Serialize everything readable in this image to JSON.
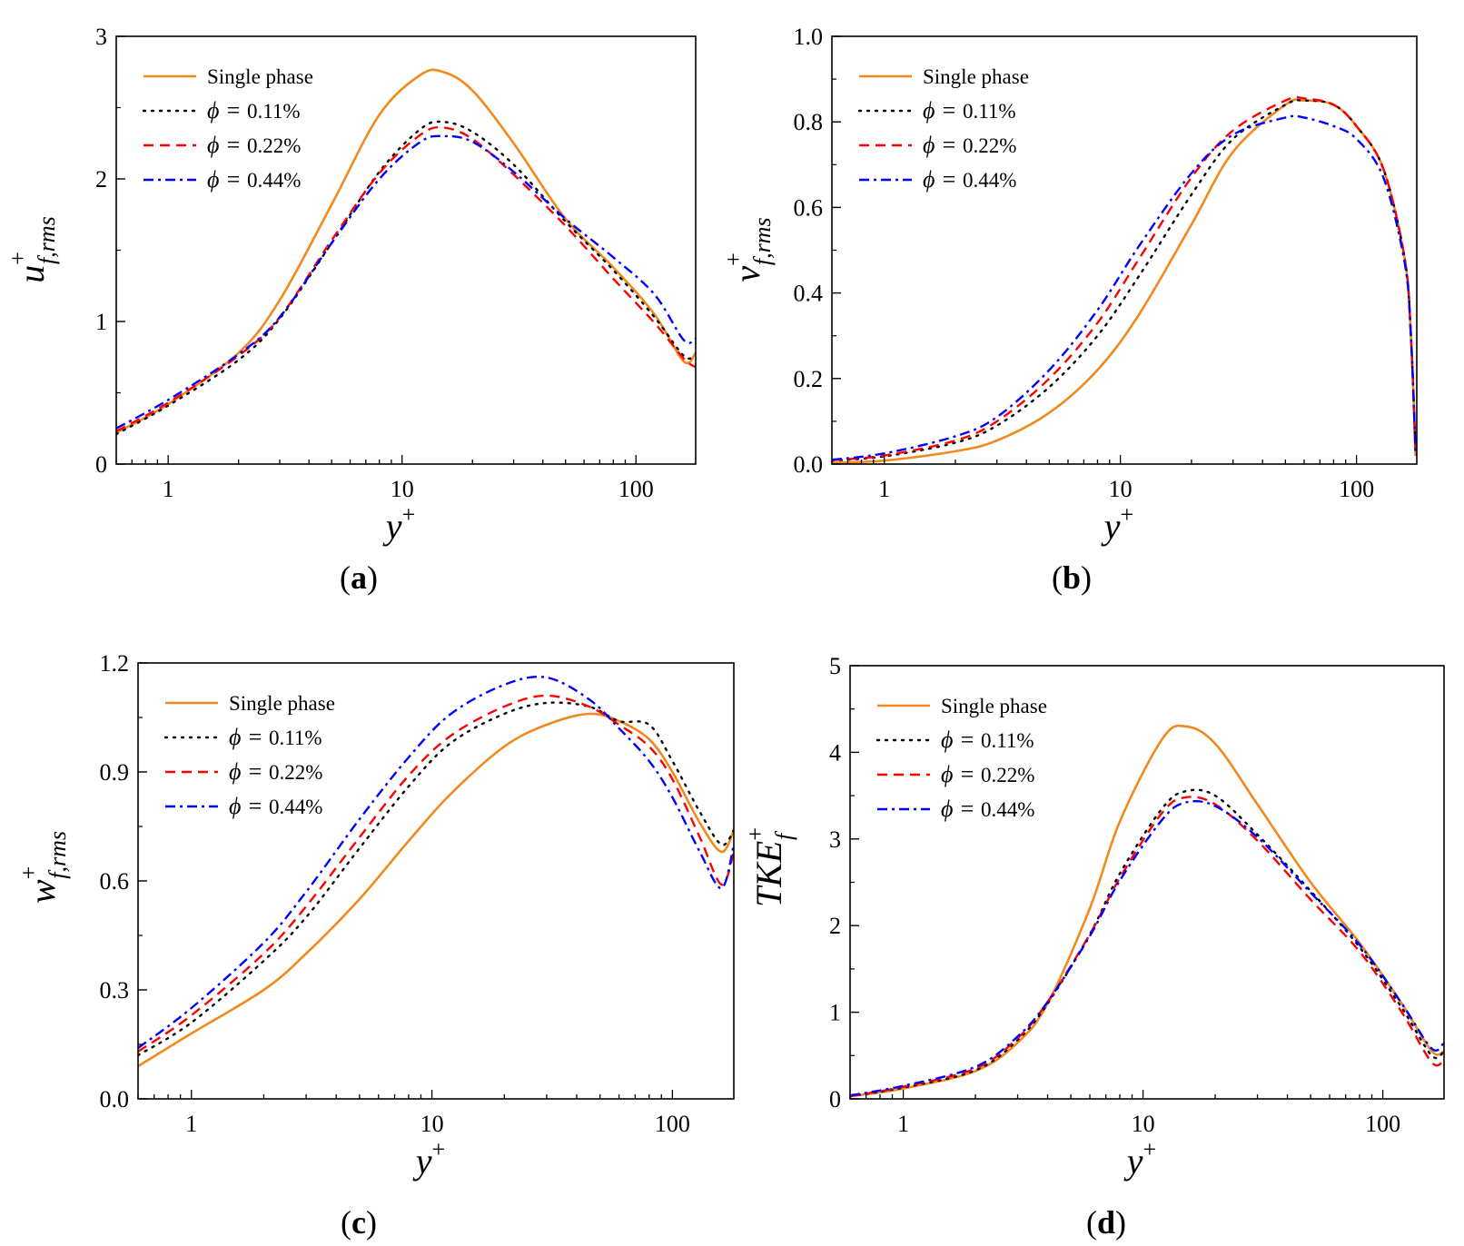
{
  "figure": {
    "panel_labels": [
      {
        "open": "(",
        "letter": "a",
        "close": ")"
      },
      {
        "open": "(",
        "letter": "b",
        "close": ")"
      },
      {
        "open": "(",
        "letter": "c",
        "close": ")"
      },
      {
        "open": "(",
        "letter": "d",
        "close": ")"
      }
    ]
  },
  "colors": {
    "single_phase": "#f08a1c",
    "phi_011": "#000000",
    "phi_022": "#ff0000",
    "phi_044": "#0000ff"
  },
  "chart_data": [
    {
      "type": "line",
      "panel": "a",
      "xscale": "log",
      "xlim": [
        0.6,
        180
      ],
      "ylim": [
        0,
        3
      ],
      "yticks": [
        0,
        1,
        2,
        3
      ],
      "xticks": [
        1,
        10,
        100
      ],
      "xlabel": {
        "base": "y",
        "sup": "+"
      },
      "ylabel": {
        "base": "u",
        "sup": "+",
        "sub": "f,rms"
      },
      "legend_position": "top-left",
      "series": [
        {
          "name": "Single phase",
          "style": "solid",
          "color": "#f08a1c",
          "x": [
            0.6,
            1,
            2,
            3,
            5,
            8,
            12,
            15,
            20,
            30,
            50,
            80,
            120,
            160,
            180
          ],
          "y": [
            0.22,
            0.42,
            0.78,
            1.15,
            1.82,
            2.45,
            2.73,
            2.75,
            2.62,
            2.25,
            1.72,
            1.38,
            1.05,
            0.72,
            0.78
          ]
        },
        {
          "name": "0.11%",
          "style": "dotted",
          "color": "#000000",
          "x": [
            0.6,
            1,
            2,
            3,
            5,
            8,
            12,
            15,
            20,
            30,
            50,
            80,
            120,
            160,
            180
          ],
          "y": [
            0.21,
            0.41,
            0.73,
            1.02,
            1.55,
            2.05,
            2.35,
            2.4,
            2.33,
            2.1,
            1.7,
            1.36,
            1.03,
            0.76,
            0.76
          ]
        },
        {
          "name": "0.22%",
          "style": "dashed",
          "color": "#ff0000",
          "x": [
            0.6,
            1,
            2,
            3,
            5,
            8,
            12,
            15,
            20,
            30,
            50,
            80,
            120,
            160,
            180
          ],
          "y": [
            0.23,
            0.43,
            0.76,
            1.03,
            1.57,
            2.04,
            2.31,
            2.36,
            2.28,
            2.03,
            1.67,
            1.3,
            0.99,
            0.74,
            0.68
          ]
        },
        {
          "name": "0.44%",
          "style": "dashdot",
          "color": "#0000ff",
          "x": [
            0.6,
            1,
            2,
            3,
            5,
            8,
            12,
            15,
            20,
            30,
            50,
            80,
            120,
            160,
            180
          ],
          "y": [
            0.25,
            0.45,
            0.77,
            1.03,
            1.55,
            2.0,
            2.26,
            2.3,
            2.26,
            2.05,
            1.72,
            1.45,
            1.19,
            0.87,
            0.88
          ]
        }
      ]
    },
    {
      "type": "line",
      "panel": "b",
      "xscale": "log",
      "xlim": [
        0.6,
        180
      ],
      "ylim": [
        0,
        1.0
      ],
      "yticks": [
        0.0,
        0.2,
        0.4,
        0.6,
        0.8,
        1.0
      ],
      "xticks": [
        1,
        10,
        100
      ],
      "xlabel": {
        "base": "y",
        "sup": "+"
      },
      "ylabel": {
        "base": "v",
        "sup": "+",
        "sub": "f,rms"
      },
      "legend_position": "top-left",
      "series": [
        {
          "name": "Single phase",
          "style": "solid",
          "color": "#f08a1c",
          "x": [
            0.6,
            1,
            2,
            3,
            5,
            8,
            12,
            20,
            30,
            50,
            60,
            80,
            100,
            130,
            160,
            170,
            178
          ],
          "y": [
            0.003,
            0.008,
            0.03,
            0.055,
            0.12,
            0.22,
            0.35,
            0.56,
            0.73,
            0.84,
            0.85,
            0.84,
            0.79,
            0.69,
            0.48,
            0.3,
            0.02
          ]
        },
        {
          "name": "0.11%",
          "style": "dotted",
          "color": "#000000",
          "x": [
            0.6,
            1,
            2,
            3,
            5,
            8,
            12,
            20,
            30,
            50,
            60,
            80,
            100,
            130,
            160,
            170,
            178
          ],
          "y": [
            0.008,
            0.018,
            0.05,
            0.09,
            0.18,
            0.3,
            0.44,
            0.63,
            0.76,
            0.84,
            0.85,
            0.84,
            0.79,
            0.69,
            0.48,
            0.3,
            0.02
          ]
        },
        {
          "name": "0.22%",
          "style": "dashed",
          "color": "#ff0000",
          "x": [
            0.6,
            1,
            2,
            3,
            5,
            8,
            12,
            20,
            30,
            50,
            60,
            80,
            100,
            130,
            160,
            170,
            178
          ],
          "y": [
            0.009,
            0.02,
            0.055,
            0.1,
            0.2,
            0.33,
            0.48,
            0.67,
            0.78,
            0.85,
            0.855,
            0.84,
            0.79,
            0.69,
            0.48,
            0.3,
            0.02
          ]
        },
        {
          "name": "0.44%",
          "style": "dashdot",
          "color": "#0000ff",
          "x": [
            0.6,
            1,
            2,
            3,
            5,
            8,
            12,
            20,
            30,
            50,
            60,
            80,
            100,
            130,
            160,
            170,
            178
          ],
          "y": [
            0.01,
            0.025,
            0.065,
            0.11,
            0.22,
            0.36,
            0.51,
            0.68,
            0.77,
            0.81,
            0.81,
            0.79,
            0.76,
            0.67,
            0.47,
            0.3,
            0.02
          ]
        }
      ]
    },
    {
      "type": "line",
      "panel": "c",
      "xscale": "log",
      "xlim": [
        0.6,
        180
      ],
      "ylim": [
        0,
        1.2
      ],
      "yticks": [
        0.0,
        0.3,
        0.6,
        0.9,
        1.2
      ],
      "xticks": [
        1,
        10,
        100
      ],
      "xlabel": {
        "base": "y",
        "sup": "+"
      },
      "ylabel": {
        "base": "w",
        "sup": "+",
        "sub": "f,rms"
      },
      "legend_position": "top-left",
      "series": [
        {
          "name": "Single phase",
          "style": "solid",
          "color": "#f08a1c",
          "x": [
            0.6,
            1,
            2,
            3,
            5,
            8,
            12,
            20,
            30,
            45,
            60,
            80,
            100,
            130,
            160,
            180
          ],
          "y": [
            0.09,
            0.18,
            0.3,
            0.4,
            0.55,
            0.71,
            0.84,
            0.97,
            1.03,
            1.06,
            1.04,
            0.99,
            0.9,
            0.76,
            0.68,
            0.74
          ]
        },
        {
          "name": "0.11%",
          "style": "dotted",
          "color": "#000000",
          "x": [
            0.6,
            1,
            2,
            3,
            5,
            8,
            12,
            20,
            30,
            45,
            60,
            80,
            100,
            130,
            160,
            180
          ],
          "y": [
            0.12,
            0.21,
            0.38,
            0.5,
            0.69,
            0.86,
            0.98,
            1.06,
            1.09,
            1.08,
            1.04,
            1.03,
            0.93,
            0.79,
            0.7,
            0.74
          ]
        },
        {
          "name": "0.22%",
          "style": "dashed",
          "color": "#ff0000",
          "x": [
            0.6,
            1,
            2,
            3,
            5,
            8,
            12,
            20,
            30,
            45,
            60,
            80,
            100,
            130,
            160,
            180
          ],
          "y": [
            0.13,
            0.23,
            0.4,
            0.53,
            0.72,
            0.89,
            1.0,
            1.08,
            1.11,
            1.08,
            1.03,
            0.97,
            0.88,
            0.72,
            0.59,
            0.68
          ]
        },
        {
          "name": "0.44%",
          "style": "dashdot",
          "color": "#0000ff",
          "x": [
            0.6,
            1,
            2,
            3,
            5,
            8,
            12,
            20,
            30,
            45,
            60,
            80,
            100,
            130,
            160,
            180
          ],
          "y": [
            0.14,
            0.25,
            0.43,
            0.57,
            0.77,
            0.94,
            1.06,
            1.14,
            1.16,
            1.1,
            1.02,
            0.93,
            0.83,
            0.68,
            0.58,
            0.7
          ]
        }
      ]
    },
    {
      "type": "line",
      "panel": "d",
      "xscale": "log",
      "xlim": [
        0.6,
        180
      ],
      "ylim": [
        0,
        5
      ],
      "yticks": [
        0,
        1,
        2,
        3,
        4,
        5
      ],
      "xticks": [
        1,
        10,
        100
      ],
      "xlabel": {
        "base": "y",
        "sup": "+"
      },
      "ylabel": {
        "base": "TKE",
        "sup": "+",
        "sub": "f"
      },
      "legend_position": "top-left",
      "series": [
        {
          "name": "Single phase",
          "style": "solid",
          "color": "#f08a1c",
          "x": [
            0.6,
            1,
            2,
            3,
            4,
            6,
            8,
            12,
            15,
            20,
            30,
            50,
            80,
            120,
            160,
            180
          ],
          "y": [
            0.03,
            0.12,
            0.32,
            0.65,
            1.1,
            2.2,
            3.2,
            4.15,
            4.3,
            4.1,
            3.4,
            2.5,
            1.8,
            1.1,
            0.55,
            0.55
          ]
        },
        {
          "name": "0.11%",
          "style": "dotted",
          "color": "#000000",
          "x": [
            0.6,
            1,
            2,
            3,
            4,
            6,
            8,
            12,
            15,
            20,
            30,
            50,
            80,
            120,
            160,
            180
          ],
          "y": [
            0.03,
            0.13,
            0.33,
            0.68,
            1.1,
            1.9,
            2.6,
            3.35,
            3.55,
            3.5,
            3.05,
            2.4,
            1.75,
            1.05,
            0.5,
            0.55
          ]
        },
        {
          "name": "0.22%",
          "style": "dashed",
          "color": "#ff0000",
          "x": [
            0.6,
            1,
            2,
            3,
            4,
            6,
            8,
            12,
            15,
            20,
            30,
            50,
            80,
            120,
            160,
            180
          ],
          "y": [
            0.03,
            0.14,
            0.35,
            0.7,
            1.12,
            1.9,
            2.55,
            3.3,
            3.48,
            3.4,
            2.98,
            2.3,
            1.7,
            1.0,
            0.42,
            0.45
          ]
        },
        {
          "name": "0.44%",
          "style": "dashdot",
          "color": "#0000ff",
          "x": [
            0.6,
            1,
            2,
            3,
            4,
            6,
            8,
            12,
            15,
            20,
            30,
            50,
            80,
            120,
            160,
            180
          ],
          "y": [
            0.04,
            0.15,
            0.37,
            0.72,
            1.12,
            1.88,
            2.52,
            3.22,
            3.42,
            3.38,
            3.02,
            2.38,
            1.78,
            1.1,
            0.58,
            0.65
          ]
        }
      ]
    }
  ],
  "legend": {
    "entries": [
      {
        "prefix": "",
        "label": "Single phase"
      },
      {
        "prefix": "ϕ = ",
        "label": "0.11%"
      },
      {
        "prefix": "ϕ = ",
        "label": "0.22%"
      },
      {
        "prefix": "ϕ = ",
        "label": "0.44%"
      }
    ]
  }
}
